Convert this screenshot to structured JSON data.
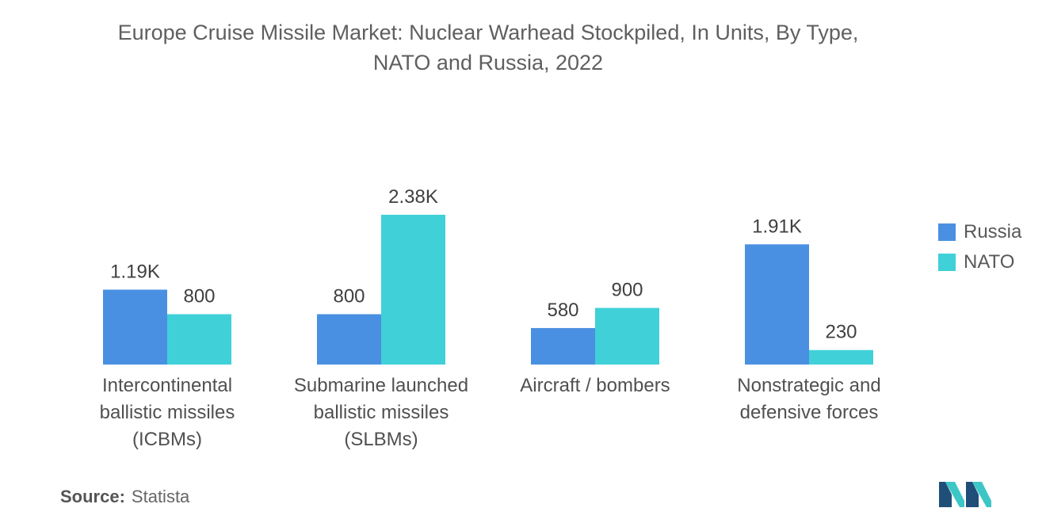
{
  "title_line1": "Europe Cruise Missile Market: Nuclear Warhead Stockpiled, In Units, By Type,",
  "title_line2": "NATO and Russia, 2022",
  "source_label": "Source:",
  "source_value": "Statista",
  "colors": {
    "russia": "#4a90e2",
    "nato": "#40d0d8",
    "logo_dark": "#1f4e79",
    "logo_teal": "#3cc6c6"
  },
  "chart_data": {
    "type": "bar",
    "title": "Europe Cruise Missile Market: Nuclear Warhead Stockpiled, In Units, By Type, NATO and Russia, 2022",
    "categories": [
      [
        "Intercontinental",
        "ballistic missiles",
        "(ICBMs)"
      ],
      [
        "Submarine launched",
        "ballistic missiles",
        "(SLBMs)"
      ],
      [
        "Aircraft / bombers"
      ],
      [
        "Nonstrategic and",
        "defensive forces"
      ]
    ],
    "series": [
      {
        "name": "Russia",
        "values": [
          1190,
          800,
          580,
          1910
        ],
        "labels": [
          "1.19K",
          "800",
          "580",
          "1.91K"
        ]
      },
      {
        "name": "NATO",
        "values": [
          800,
          2380,
          900,
          230
        ],
        "labels": [
          "800",
          "2.38K",
          "900",
          "230"
        ]
      }
    ],
    "ylim": [
      0,
      2380
    ],
    "legend": "right",
    "grid": false
  }
}
